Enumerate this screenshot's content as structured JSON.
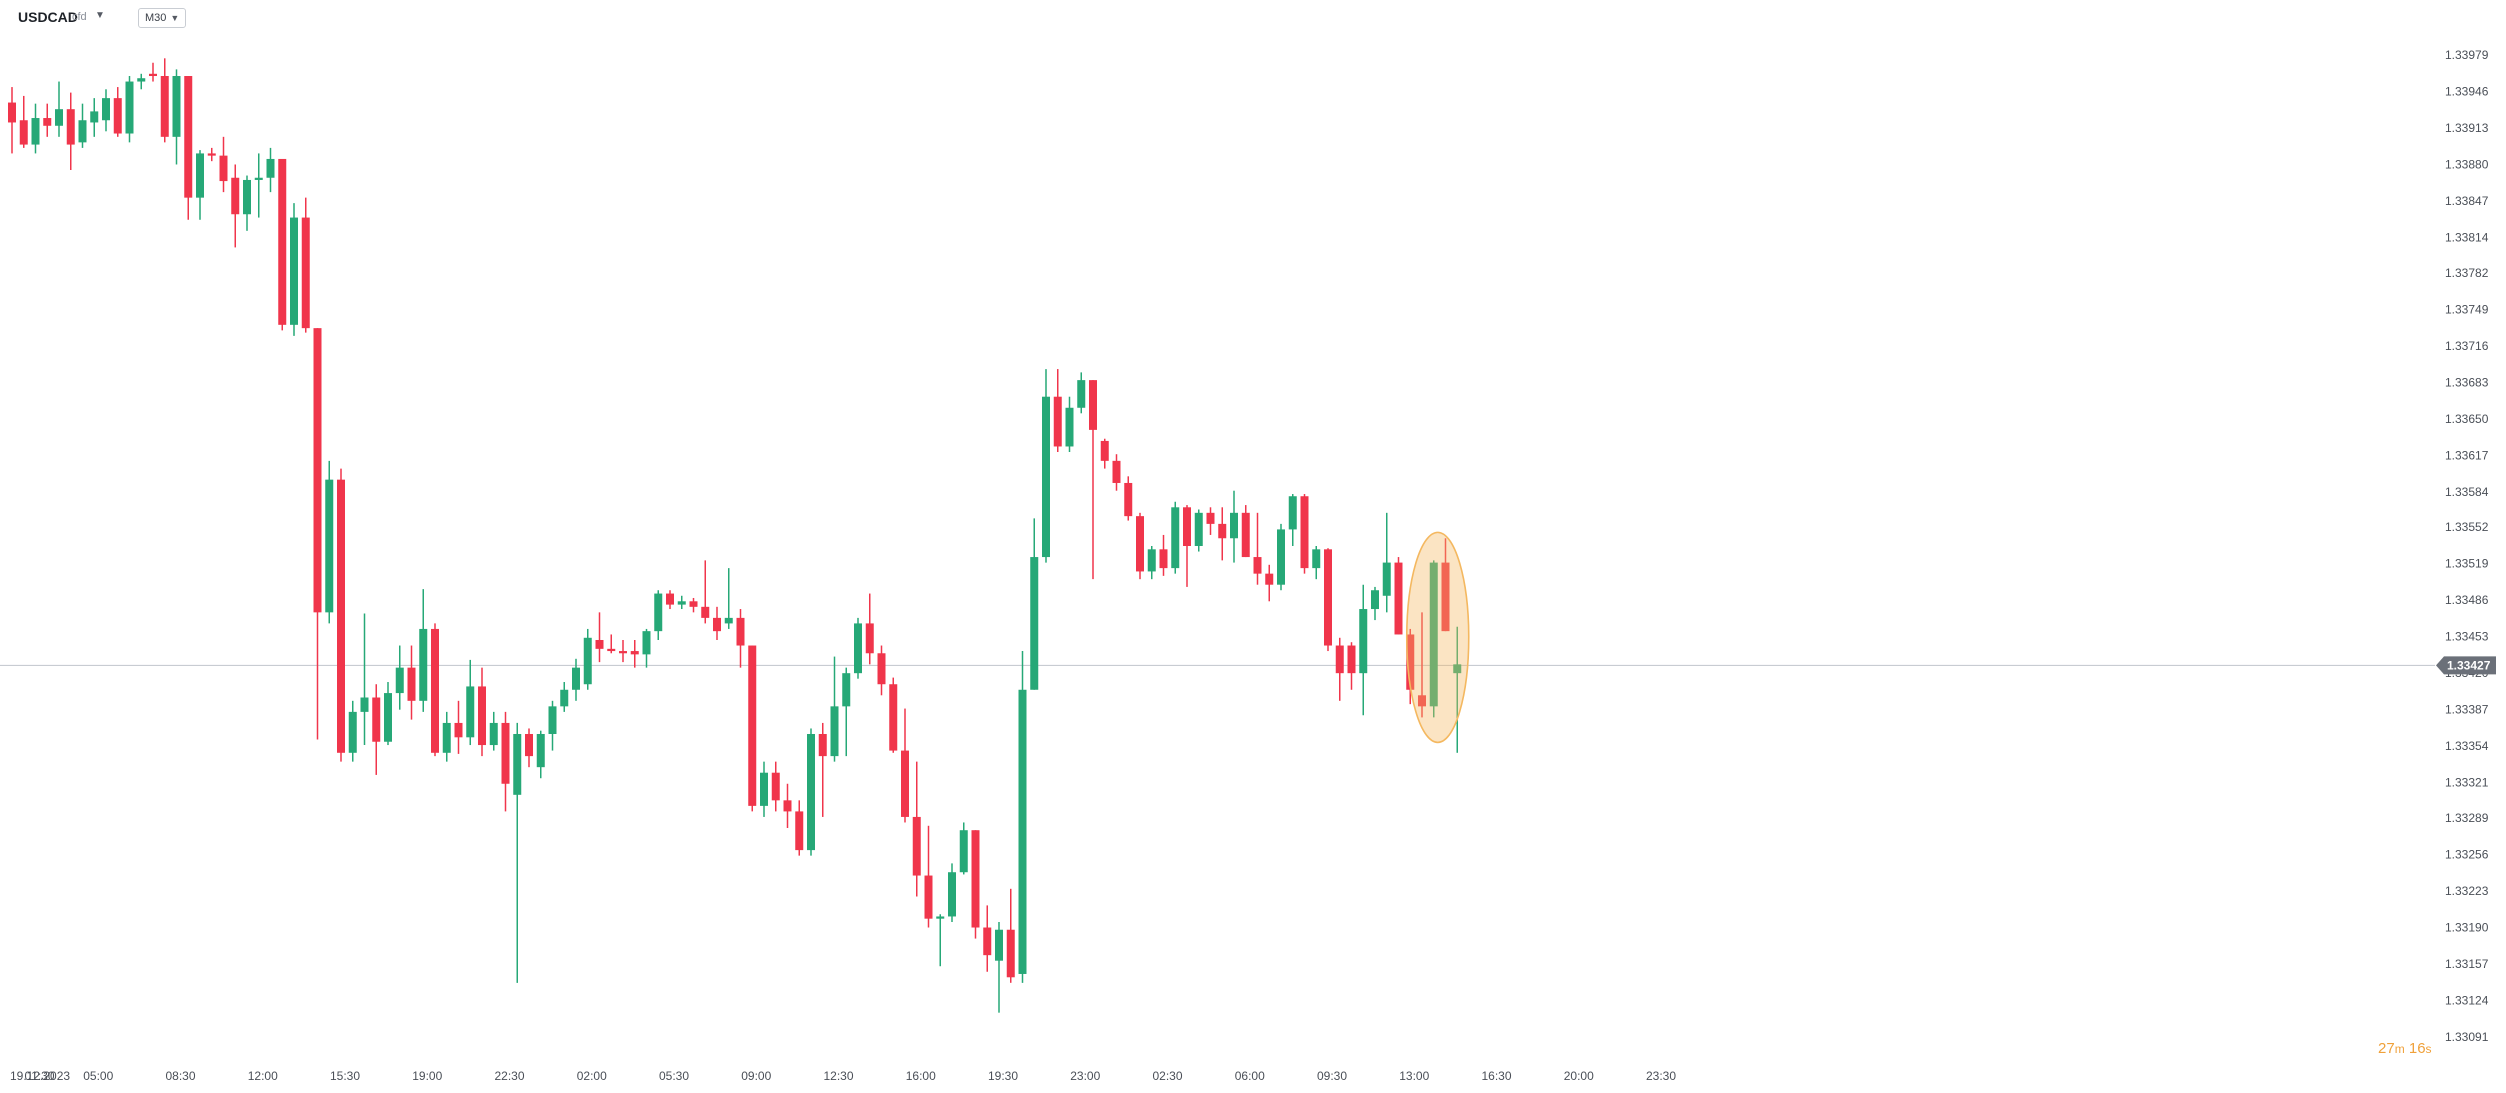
{
  "header": {
    "symbol": "USDCAD",
    "symbol_sub": "cfd",
    "timeframe": "M30"
  },
  "price_tag": "1.33427",
  "countdown": {
    "minutes": "27",
    "m_unit": "m",
    "seconds": "16",
    "s_unit": "s"
  },
  "colors": {
    "up": "#26a877",
    "down": "#f0354b",
    "grid_line": "#c8ccd2",
    "highlight": "#f4b860",
    "tag_bg": "#6b7079"
  },
  "chart_data": {
    "type": "candlestick",
    "title": "",
    "xlabel": "",
    "ylabel": "",
    "ylim": [
      1.33091,
      1.33979
    ],
    "y_ticks": [
      "1.33979",
      "1.33946",
      "1.33913",
      "1.33880",
      "1.33847",
      "1.33814",
      "1.33782",
      "1.33749",
      "1.33716",
      "1.33683",
      "1.33650",
      "1.33617",
      "1.33584",
      "1.33552",
      "1.33519",
      "1.33486",
      "1.33453",
      "1.33420",
      "1.33387",
      "1.33354",
      "1.33321",
      "1.33289",
      "1.33256",
      "1.33223",
      "1.33190",
      "1.33157",
      "1.33124",
      "1.33091"
    ],
    "x_ticks": [
      {
        "label": "19.12.2023",
        "i": 0
      },
      {
        "label": "01:30",
        "i": 2
      },
      {
        "label": "05:00",
        "i": 7
      },
      {
        "label": "08:30",
        "i": 14
      },
      {
        "label": "12:00",
        "i": 21
      },
      {
        "label": "15:30",
        "i": 28
      },
      {
        "label": "19:00",
        "i": 35
      },
      {
        "label": "22:30",
        "i": 42
      },
      {
        "label": "02:00",
        "i": 49
      },
      {
        "label": "05:30",
        "i": 56
      },
      {
        "label": "09:00",
        "i": 63
      },
      {
        "label": "12:30",
        "i": 70
      },
      {
        "label": "16:00",
        "i": 77
      },
      {
        "label": "19:30",
        "i": 84
      },
      {
        "label": "23:00",
        "i": 91
      },
      {
        "label": "02:30",
        "i": 98
      },
      {
        "label": "06:00",
        "i": 105
      },
      {
        "label": "09:30",
        "i": 112
      },
      {
        "label": "13:00",
        "i": 119
      },
      {
        "label": "16:30",
        "i": 126
      },
      {
        "label": "20:00",
        "i": 133
      },
      {
        "label": "23:30",
        "i": 140
      }
    ],
    "reference_price": 1.33427,
    "highlighted_candle_index": 121,
    "candles": [
      {
        "o": 1.33936,
        "h": 1.3395,
        "l": 1.3389,
        "c": 1.33918
      },
      {
        "o": 1.3392,
        "h": 1.33942,
        "l": 1.33895,
        "c": 1.33898
      },
      {
        "o": 1.33898,
        "h": 1.33935,
        "l": 1.3389,
        "c": 1.33922
      },
      {
        "o": 1.33922,
        "h": 1.33935,
        "l": 1.33905,
        "c": 1.33915
      },
      {
        "o": 1.33915,
        "h": 1.33955,
        "l": 1.33905,
        "c": 1.3393
      },
      {
        "o": 1.3393,
        "h": 1.33945,
        "l": 1.33875,
        "c": 1.33898
      },
      {
        "o": 1.339,
        "h": 1.33935,
        "l": 1.33895,
        "c": 1.3392
      },
      {
        "o": 1.33918,
        "h": 1.3394,
        "l": 1.33905,
        "c": 1.33928
      },
      {
        "o": 1.3392,
        "h": 1.33948,
        "l": 1.3391,
        "c": 1.3394
      },
      {
        "o": 1.3394,
        "h": 1.3395,
        "l": 1.33905,
        "c": 1.33908
      },
      {
        "o": 1.33908,
        "h": 1.3396,
        "l": 1.339,
        "c": 1.33955
      },
      {
        "o": 1.33955,
        "h": 1.33962,
        "l": 1.33948,
        "c": 1.33958
      },
      {
        "o": 1.33962,
        "h": 1.33972,
        "l": 1.33955,
        "c": 1.3396
      },
      {
        "o": 1.3396,
        "h": 1.33976,
        "l": 1.339,
        "c": 1.33905
      },
      {
        "o": 1.33905,
        "h": 1.33966,
        "l": 1.3388,
        "c": 1.3396
      },
      {
        "o": 1.3396,
        "h": 1.3396,
        "l": 1.3383,
        "c": 1.3385
      },
      {
        "o": 1.3385,
        "h": 1.33893,
        "l": 1.3383,
        "c": 1.3389
      },
      {
        "o": 1.3389,
        "h": 1.33895,
        "l": 1.33883,
        "c": 1.33888
      },
      {
        "o": 1.33888,
        "h": 1.33905,
        "l": 1.33855,
        "c": 1.33865
      },
      {
        "o": 1.33868,
        "h": 1.3388,
        "l": 1.33805,
        "c": 1.33835
      },
      {
        "o": 1.33835,
        "h": 1.3387,
        "l": 1.3382,
        "c": 1.33866
      },
      {
        "o": 1.33866,
        "h": 1.3389,
        "l": 1.33832,
        "c": 1.33868
      },
      {
        "o": 1.33868,
        "h": 1.33895,
        "l": 1.33855,
        "c": 1.33885
      },
      {
        "o": 1.33885,
        "h": 1.33885,
        "l": 1.3373,
        "c": 1.33735
      },
      {
        "o": 1.33735,
        "h": 1.33845,
        "l": 1.33725,
        "c": 1.33832
      },
      {
        "o": 1.33832,
        "h": 1.3385,
        "l": 1.33728,
        "c": 1.33732
      },
      {
        "o": 1.33732,
        "h": 1.33732,
        "l": 1.3336,
        "c": 1.33475
      },
      {
        "o": 1.33475,
        "h": 1.33612,
        "l": 1.33465,
        "c": 1.33595
      },
      {
        "o": 1.33595,
        "h": 1.33605,
        "l": 1.3334,
        "c": 1.33348
      },
      {
        "o": 1.33348,
        "h": 1.33395,
        "l": 1.3334,
        "c": 1.33385
      },
      {
        "o": 1.33385,
        "h": 1.33474,
        "l": 1.33355,
        "c": 1.33398
      },
      {
        "o": 1.33398,
        "h": 1.3341,
        "l": 1.33328,
        "c": 1.33358
      },
      {
        "o": 1.33358,
        "h": 1.33412,
        "l": 1.33355,
        "c": 1.33402
      },
      {
        "o": 1.33402,
        "h": 1.33445,
        "l": 1.33387,
        "c": 1.33425
      },
      {
        "o": 1.33425,
        "h": 1.33445,
        "l": 1.33378,
        "c": 1.33395
      },
      {
        "o": 1.33395,
        "h": 1.33496,
        "l": 1.33385,
        "c": 1.3346
      },
      {
        "o": 1.3346,
        "h": 1.33465,
        "l": 1.33345,
        "c": 1.33348
      },
      {
        "o": 1.33348,
        "h": 1.33385,
        "l": 1.3334,
        "c": 1.33375
      },
      {
        "o": 1.33375,
        "h": 1.33395,
        "l": 1.33347,
        "c": 1.33362
      },
      {
        "o": 1.33362,
        "h": 1.33432,
        "l": 1.33355,
        "c": 1.33408
      },
      {
        "o": 1.33408,
        "h": 1.33425,
        "l": 1.33345,
        "c": 1.33355
      },
      {
        "o": 1.33355,
        "h": 1.33385,
        "l": 1.3335,
        "c": 1.33375
      },
      {
        "o": 1.33375,
        "h": 1.33385,
        "l": 1.33295,
        "c": 1.3332
      },
      {
        "o": 1.3331,
        "h": 1.33375,
        "l": 1.3314,
        "c": 1.33365
      },
      {
        "o": 1.33365,
        "h": 1.3337,
        "l": 1.33335,
        "c": 1.33345
      },
      {
        "o": 1.33335,
        "h": 1.33368,
        "l": 1.33325,
        "c": 1.33365
      },
      {
        "o": 1.33365,
        "h": 1.33395,
        "l": 1.3335,
        "c": 1.3339
      },
      {
        "o": 1.3339,
        "h": 1.33412,
        "l": 1.33385,
        "c": 1.33405
      },
      {
        "o": 1.33405,
        "h": 1.33433,
        "l": 1.33395,
        "c": 1.33425
      },
      {
        "o": 1.3341,
        "h": 1.3346,
        "l": 1.33405,
        "c": 1.33452
      },
      {
        "o": 1.3345,
        "h": 1.33475,
        "l": 1.3343,
        "c": 1.33442
      },
      {
        "o": 1.33442,
        "h": 1.33455,
        "l": 1.33438,
        "c": 1.3344
      },
      {
        "o": 1.3344,
        "h": 1.3345,
        "l": 1.3343,
        "c": 1.33438
      },
      {
        "o": 1.3344,
        "h": 1.3345,
        "l": 1.33425,
        "c": 1.33437
      },
      {
        "o": 1.33437,
        "h": 1.3346,
        "l": 1.33425,
        "c": 1.33458
      },
      {
        "o": 1.33458,
        "h": 1.33495,
        "l": 1.3345,
        "c": 1.33492
      },
      {
        "o": 1.33492,
        "h": 1.33495,
        "l": 1.33478,
        "c": 1.33482
      },
      {
        "o": 1.33482,
        "h": 1.3349,
        "l": 1.33478,
        "c": 1.33485
      },
      {
        "o": 1.33485,
        "h": 1.33488,
        "l": 1.33475,
        "c": 1.3348
      },
      {
        "o": 1.3348,
        "h": 1.33522,
        "l": 1.33465,
        "c": 1.3347
      },
      {
        "o": 1.3347,
        "h": 1.3348,
        "l": 1.3345,
        "c": 1.33458
      },
      {
        "o": 1.33465,
        "h": 1.33515,
        "l": 1.3346,
        "c": 1.3347
      },
      {
        "o": 1.3347,
        "h": 1.33478,
        "l": 1.33425,
        "c": 1.33445
      },
      {
        "o": 1.33445,
        "h": 1.33445,
        "l": 1.33295,
        "c": 1.333
      },
      {
        "o": 1.333,
        "h": 1.3334,
        "l": 1.3329,
        "c": 1.3333
      },
      {
        "o": 1.3333,
        "h": 1.3334,
        "l": 1.33295,
        "c": 1.33305
      },
      {
        "o": 1.33305,
        "h": 1.3332,
        "l": 1.3328,
        "c": 1.33295
      },
      {
        "o": 1.33295,
        "h": 1.33305,
        "l": 1.33255,
        "c": 1.3326
      },
      {
        "o": 1.3326,
        "h": 1.3337,
        "l": 1.33255,
        "c": 1.33365
      },
      {
        "o": 1.33365,
        "h": 1.33375,
        "l": 1.3329,
        "c": 1.33345
      },
      {
        "o": 1.33345,
        "h": 1.33435,
        "l": 1.3334,
        "c": 1.3339
      },
      {
        "o": 1.3339,
        "h": 1.33425,
        "l": 1.33345,
        "c": 1.3342
      },
      {
        "o": 1.3342,
        "h": 1.3347,
        "l": 1.33415,
        "c": 1.33465
      },
      {
        "o": 1.33465,
        "h": 1.33492,
        "l": 1.33428,
        "c": 1.33438
      },
      {
        "o": 1.33438,
        "h": 1.33445,
        "l": 1.334,
        "c": 1.3341
      },
      {
        "o": 1.3341,
        "h": 1.33416,
        "l": 1.33348,
        "c": 1.3335
      },
      {
        "o": 1.3335,
        "h": 1.33388,
        "l": 1.33285,
        "c": 1.3329
      },
      {
        "o": 1.3329,
        "h": 1.3334,
        "l": 1.33218,
        "c": 1.33237
      },
      {
        "o": 1.33237,
        "h": 1.33282,
        "l": 1.3319,
        "c": 1.33198
      },
      {
        "o": 1.33198,
        "h": 1.33202,
        "l": 1.33155,
        "c": 1.332
      },
      {
        "o": 1.332,
        "h": 1.33248,
        "l": 1.33195,
        "c": 1.3324
      },
      {
        "o": 1.3324,
        "h": 1.33285,
        "l": 1.33238,
        "c": 1.33278
      },
      {
        "o": 1.33278,
        "h": 1.33278,
        "l": 1.3318,
        "c": 1.3319
      },
      {
        "o": 1.3319,
        "h": 1.3321,
        "l": 1.3315,
        "c": 1.33165
      },
      {
        "o": 1.3316,
        "h": 1.33195,
        "l": 1.33113,
        "c": 1.33188
      },
      {
        "o": 1.33188,
        "h": 1.33225,
        "l": 1.3314,
        "c": 1.33145
      },
      {
        "o": 1.33148,
        "h": 1.3344,
        "l": 1.3314,
        "c": 1.33405
      },
      {
        "o": 1.33405,
        "h": 1.3356,
        "l": 1.33405,
        "c": 1.33525
      },
      {
        "o": 1.33525,
        "h": 1.33695,
        "l": 1.3352,
        "c": 1.3367
      },
      {
        "o": 1.3367,
        "h": 1.33695,
        "l": 1.3362,
        "c": 1.33625
      },
      {
        "o": 1.33625,
        "h": 1.3367,
        "l": 1.3362,
        "c": 1.3366
      },
      {
        "o": 1.3366,
        "h": 1.33692,
        "l": 1.33655,
        "c": 1.33685
      },
      {
        "o": 1.33685,
        "h": 1.33685,
        "l": 1.33505,
        "c": 1.3364
      },
      {
        "o": 1.3363,
        "h": 1.33632,
        "l": 1.33605,
        "c": 1.33612
      },
      {
        "o": 1.33612,
        "h": 1.33618,
        "l": 1.33585,
        "c": 1.33592
      },
      {
        "o": 1.33592,
        "h": 1.33598,
        "l": 1.33558,
        "c": 1.33562
      },
      {
        "o": 1.33562,
        "h": 1.33565,
        "l": 1.33505,
        "c": 1.33512
      },
      {
        "o": 1.33512,
        "h": 1.33535,
        "l": 1.33505,
        "c": 1.33532
      },
      {
        "o": 1.33532,
        "h": 1.33545,
        "l": 1.33508,
        "c": 1.33515
      },
      {
        "o": 1.33515,
        "h": 1.33575,
        "l": 1.3351,
        "c": 1.3357
      },
      {
        "o": 1.3357,
        "h": 1.33572,
        "l": 1.33498,
        "c": 1.33535
      },
      {
        "o": 1.33535,
        "h": 1.33568,
        "l": 1.3353,
        "c": 1.33565
      },
      {
        "o": 1.33565,
        "h": 1.3357,
        "l": 1.33545,
        "c": 1.33555
      },
      {
        "o": 1.33555,
        "h": 1.3357,
        "l": 1.33522,
        "c": 1.33542
      },
      {
        "o": 1.33542,
        "h": 1.33585,
        "l": 1.3352,
        "c": 1.33565
      },
      {
        "o": 1.33565,
        "h": 1.33572,
        "l": 1.33525,
        "c": 1.33525
      },
      {
        "o": 1.33525,
        "h": 1.33565,
        "l": 1.335,
        "c": 1.3351
      },
      {
        "o": 1.3351,
        "h": 1.33518,
        "l": 1.33485,
        "c": 1.335
      },
      {
        "o": 1.335,
        "h": 1.33555,
        "l": 1.33495,
        "c": 1.3355
      },
      {
        "o": 1.3355,
        "h": 1.33582,
        "l": 1.33535,
        "c": 1.3358
      },
      {
        "o": 1.3358,
        "h": 1.33582,
        "l": 1.3351,
        "c": 1.33515
      },
      {
        "o": 1.33515,
        "h": 1.33535,
        "l": 1.33505,
        "c": 1.33532
      },
      {
        "o": 1.33532,
        "h": 1.33533,
        "l": 1.3344,
        "c": 1.33445
      },
      {
        "o": 1.33445,
        "h": 1.33452,
        "l": 1.33395,
        "c": 1.3342
      },
      {
        "o": 1.33445,
        "h": 1.33448,
        "l": 1.33405,
        "c": 1.3342
      },
      {
        "o": 1.3342,
        "h": 1.335,
        "l": 1.33382,
        "c": 1.33478
      },
      {
        "o": 1.33478,
        "h": 1.33498,
        "l": 1.33468,
        "c": 1.33495
      },
      {
        "o": 1.3349,
        "h": 1.33565,
        "l": 1.33475,
        "c": 1.3352
      },
      {
        "o": 1.3352,
        "h": 1.33525,
        "l": 1.33455,
        "c": 1.33455
      },
      {
        "o": 1.33455,
        "h": 1.3346,
        "l": 1.33392,
        "c": 1.33405
      },
      {
        "o": 1.334,
        "h": 1.33475,
        "l": 1.3338,
        "c": 1.3339
      },
      {
        "o": 1.3339,
        "h": 1.33522,
        "l": 1.3338,
        "c": 1.3352
      },
      {
        "o": 1.3352,
        "h": 1.33542,
        "l": 1.33458,
        "c": 1.33458
      },
      {
        "o": 1.3342,
        "h": 1.33462,
        "l": 1.33348,
        "c": 1.33428
      }
    ]
  }
}
